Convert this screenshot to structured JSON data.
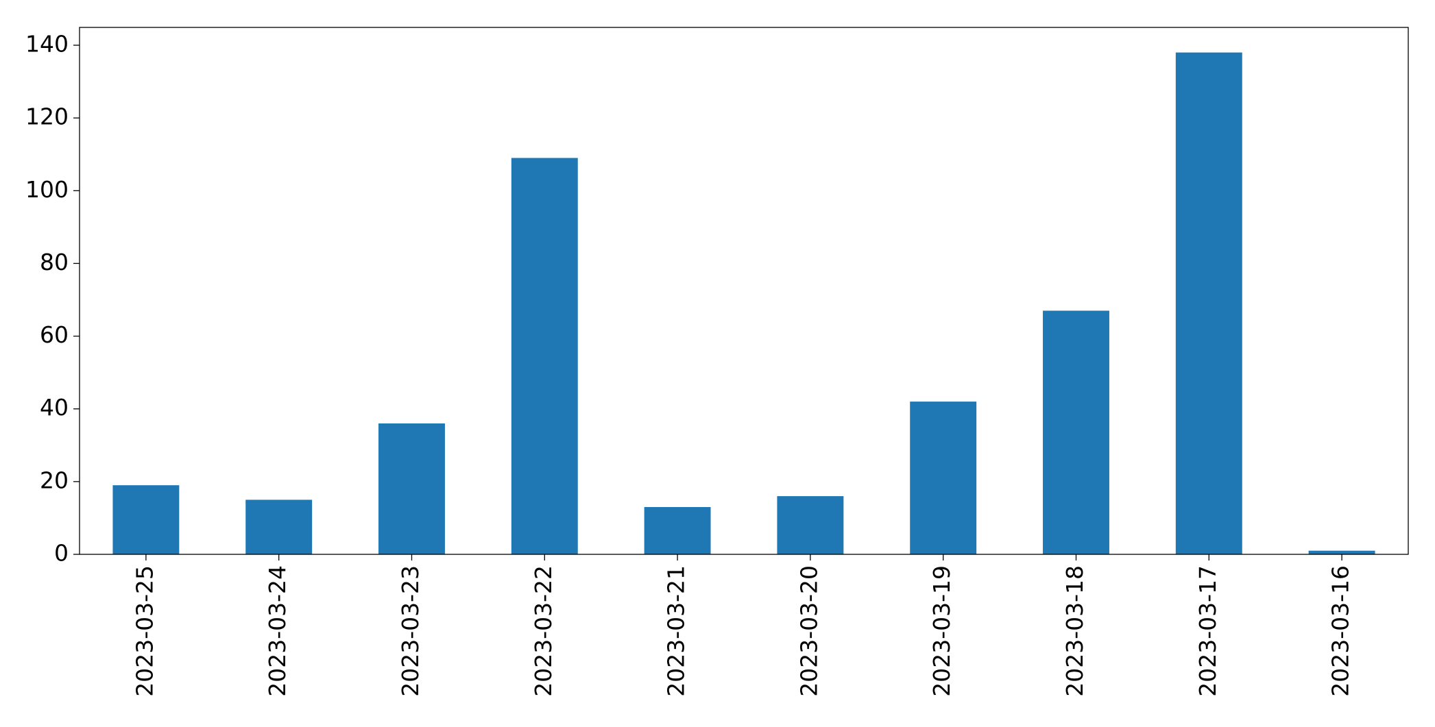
{
  "chart_data": {
    "type": "bar",
    "categories": [
      "2023-03-25",
      "2023-03-24",
      "2023-03-23",
      "2023-03-22",
      "2023-03-21",
      "2023-03-20",
      "2023-03-19",
      "2023-03-18",
      "2023-03-17",
      "2023-03-16"
    ],
    "values": [
      19,
      15,
      36,
      109,
      13,
      16,
      42,
      67,
      138,
      1
    ],
    "color": "#1f77b4",
    "ylim": [
      0,
      144.9
    ],
    "yticks": [
      0,
      20,
      40,
      60,
      80,
      100,
      120,
      140
    ],
    "grid": false
  }
}
